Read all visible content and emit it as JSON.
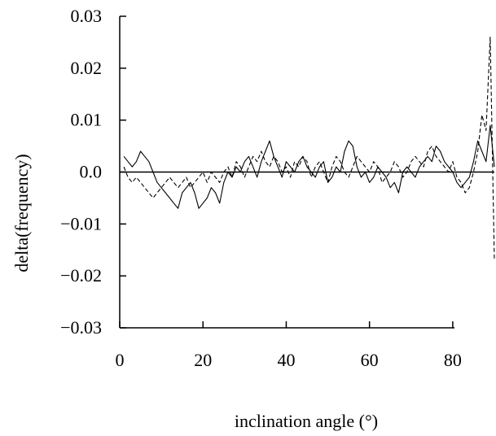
{
  "chart_data": {
    "type": "line",
    "xlabel": "inclination angle (°)",
    "ylabel": "delta(frequency)",
    "xlim": [
      0,
      90
    ],
    "ylim": [
      -0.03,
      0.03
    ],
    "x_ticks": [
      0,
      20,
      40,
      60,
      80
    ],
    "x_tick_labels": [
      "0",
      "20",
      "40",
      "60",
      "80"
    ],
    "y_ticks": [
      0.03,
      0.02,
      0.01,
      0.0,
      -0.01,
      -0.02,
      -0.03
    ],
    "y_tick_labels": [
      "0.03",
      "0.02",
      "0.01",
      "0.0",
      "−0.01",
      "−0.02",
      "−0.03"
    ],
    "reference_line_y": 0.0,
    "grid": false,
    "series": [
      {
        "line_style": "solid",
        "x": [
          1,
          2,
          3,
          4,
          5,
          6,
          7,
          8,
          9,
          10,
          11,
          12,
          13,
          14,
          15,
          16,
          17,
          18,
          19,
          20,
          21,
          22,
          23,
          24,
          25,
          26,
          27,
          28,
          29,
          30,
          31,
          32,
          33,
          34,
          35,
          36,
          37,
          38,
          39,
          40,
          41,
          42,
          43,
          44,
          45,
          46,
          47,
          48,
          49,
          50,
          51,
          52,
          53,
          54,
          55,
          56,
          57,
          58,
          59,
          60,
          61,
          62,
          63,
          64,
          65,
          66,
          67,
          68,
          69,
          70,
          71,
          72,
          73,
          74,
          75,
          76,
          77,
          78,
          79,
          80,
          81,
          82,
          83,
          84,
          85,
          86,
          87,
          88,
          89,
          90
        ],
        "y": [
          0.003,
          0.002,
          0.001,
          0.002,
          0.004,
          0.003,
          0.002,
          0.0,
          -0.002,
          -0.003,
          -0.004,
          -0.005,
          -0.006,
          -0.007,
          -0.004,
          -0.003,
          -0.002,
          -0.004,
          -0.007,
          -0.006,
          -0.005,
          -0.003,
          -0.004,
          -0.006,
          -0.002,
          0.0,
          -0.001,
          0.001,
          0.0,
          0.002,
          0.003,
          0.001,
          -0.001,
          0.002,
          0.004,
          0.006,
          0.003,
          0.001,
          -0.001,
          0.002,
          0.001,
          0.0,
          0.002,
          0.003,
          0.001,
          0.0,
          -0.001,
          0.001,
          0.002,
          -0.002,
          -0.001,
          0.001,
          0.0,
          0.004,
          0.006,
          0.005,
          0.001,
          -0.001,
          0.0,
          -0.002,
          -0.001,
          0.001,
          0.0,
          -0.001,
          -0.003,
          -0.002,
          -0.004,
          0.0,
          0.001,
          0.0,
          -0.001,
          0.001,
          0.002,
          0.003,
          0.002,
          0.005,
          0.004,
          0.002,
          0.001,
          0.0,
          -0.002,
          -0.003,
          -0.002,
          -0.001,
          0.002,
          0.006,
          0.004,
          0.002,
          0.009,
          0.001
        ]
      },
      {
        "line_style": "dashed",
        "x": [
          1,
          2,
          3,
          4,
          5,
          6,
          7,
          8,
          9,
          10,
          11,
          12,
          13,
          14,
          15,
          16,
          17,
          18,
          19,
          20,
          21,
          22,
          23,
          24,
          25,
          26,
          27,
          28,
          29,
          30,
          31,
          32,
          33,
          34,
          35,
          36,
          37,
          38,
          39,
          40,
          41,
          42,
          43,
          44,
          45,
          46,
          47,
          48,
          49,
          50,
          51,
          52,
          53,
          54,
          55,
          56,
          57,
          58,
          59,
          60,
          61,
          62,
          63,
          64,
          65,
          66,
          67,
          68,
          69,
          70,
          71,
          72,
          73,
          74,
          75,
          76,
          77,
          78,
          79,
          80,
          81,
          82,
          83,
          84,
          85,
          86,
          87,
          88,
          89,
          90
        ],
        "y": [
          0.001,
          -0.001,
          -0.002,
          -0.001,
          -0.002,
          -0.003,
          -0.004,
          -0.005,
          -0.004,
          -0.003,
          -0.002,
          -0.001,
          -0.002,
          -0.003,
          -0.002,
          -0.001,
          -0.003,
          -0.002,
          -0.001,
          0.0,
          -0.002,
          0.0,
          -0.001,
          -0.002,
          0.0,
          0.001,
          -0.001,
          0.002,
          0.001,
          -0.001,
          0.001,
          0.003,
          0.002,
          0.004,
          0.002,
          0.001,
          0.003,
          0.002,
          0.0,
          0.001,
          -0.001,
          0.002,
          0.001,
          0.003,
          0.002,
          -0.001,
          0.001,
          0.002,
          0.0,
          -0.002,
          0.001,
          0.003,
          0.002,
          0.0,
          -0.001,
          0.001,
          0.003,
          0.002,
          0.001,
          0.0,
          0.002,
          0.001,
          -0.002,
          -0.001,
          0.0,
          0.002,
          0.001,
          -0.001,
          0.0,
          0.002,
          0.003,
          0.002,
          0.001,
          0.004,
          0.005,
          0.003,
          0.002,
          0.001,
          0.0,
          0.002,
          -0.001,
          -0.002,
          -0.004,
          -0.003,
          0.0,
          0.004,
          0.011,
          0.008,
          0.026,
          -0.017
        ]
      }
    ]
  }
}
